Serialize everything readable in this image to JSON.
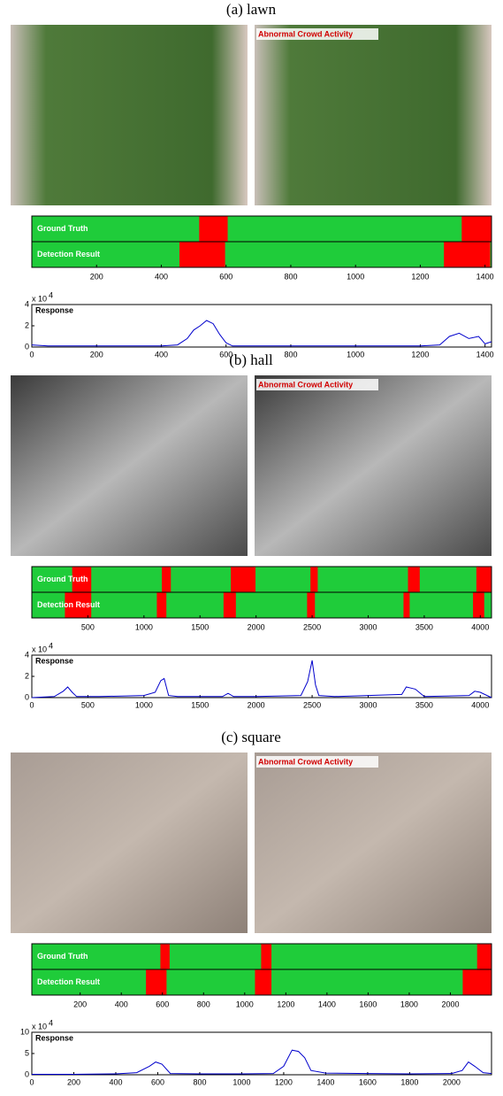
{
  "panels": [
    {
      "caption": "(a) lawn",
      "overlay_label": "Abnormal Crowd Activity"
    },
    {
      "caption": "(b) hall",
      "overlay_label": "Abnormal Crowd Activity"
    },
    {
      "caption": "(c) square",
      "overlay_label": "Abnormal Crowd Activity"
    }
  ],
  "chart_data": [
    {
      "type": "timeline",
      "background": "#1fcc3a",
      "xlim": [
        0,
        1420
      ],
      "xticks": [
        200,
        400,
        600,
        800,
        1000,
        1200,
        1400
      ],
      "series": [
        {
          "name": "Ground Truth",
          "color": "#ff0000",
          "intervals": [
            [
              517,
              605
            ],
            [
              1328,
              1420
            ]
          ]
        },
        {
          "name": "Detection Result",
          "color": "#ff0000",
          "intervals": [
            [
              456,
              597
            ],
            [
              1273,
              1416
            ]
          ]
        }
      ]
    },
    {
      "type": "line",
      "title": "Response",
      "y_scale": {
        "base": "x 10",
        "exponent": "4"
      },
      "xlim": [
        0,
        1420
      ],
      "xticks": [
        0,
        200,
        400,
        600,
        800,
        1000,
        1200,
        1400
      ],
      "ylim": [
        0,
        4
      ],
      "yticks": [
        0,
        2,
        4
      ],
      "x": [
        0,
        50,
        100,
        200,
        300,
        400,
        450,
        480,
        500,
        520,
        540,
        560,
        580,
        600,
        620,
        700,
        800,
        1000,
        1200,
        1260,
        1290,
        1320,
        1350,
        1380,
        1400,
        1420
      ],
      "series": [
        {
          "color": "#0000cc",
          "values": [
            0.2,
            0.1,
            0.1,
            0.1,
            0.1,
            0.1,
            0.2,
            0.8,
            1.6,
            2.0,
            2.5,
            2.2,
            1.2,
            0.4,
            0.1,
            0.1,
            0.1,
            0.1,
            0.1,
            0.2,
            1.0,
            1.3,
            0.8,
            1.0,
            0.3,
            0.5
          ]
        }
      ]
    },
    {
      "type": "timeline",
      "background": "#1fcc3a",
      "xlim": [
        0,
        4100
      ],
      "xticks": [
        500,
        1000,
        1500,
        2000,
        2500,
        3000,
        3500,
        4000
      ],
      "series": [
        {
          "name": "Ground Truth",
          "color": "#ff0000",
          "intervals": [
            [
              360,
              530
            ],
            [
              1160,
              1240
            ],
            [
              1775,
              1995
            ],
            [
              2485,
              2550
            ],
            [
              3355,
              3460
            ],
            [
              3965,
              4100
            ]
          ]
        },
        {
          "name": "Detection Result",
          "color": "#ff0000",
          "intervals": [
            [
              295,
              530
            ],
            [
              1115,
              1200
            ],
            [
              1710,
              1820
            ],
            [
              2455,
              2525
            ],
            [
              3315,
              3370
            ],
            [
              3935,
              4035
            ]
          ]
        }
      ]
    },
    {
      "type": "line",
      "title": "Response",
      "y_scale": {
        "base": "x 10",
        "exponent": "4"
      },
      "xlim": [
        0,
        4100
      ],
      "xticks": [
        0,
        500,
        1000,
        1500,
        2000,
        2500,
        3000,
        3500,
        4000
      ],
      "ylim": [
        0,
        4
      ],
      "yticks": [
        0,
        2,
        4
      ],
      "x": [
        0,
        200,
        280,
        320,
        360,
        400,
        600,
        1000,
        1100,
        1150,
        1180,
        1220,
        1300,
        1700,
        1750,
        1800,
        2000,
        2400,
        2460,
        2500,
        2530,
        2560,
        2700,
        3000,
        3300,
        3340,
        3380,
        3420,
        3500,
        3900,
        3950,
        4000,
        4100
      ],
      "series": [
        {
          "color": "#0000cc",
          "values": [
            0,
            0.1,
            0.6,
            1.0,
            0.5,
            0.1,
            0.1,
            0.2,
            0.5,
            1.6,
            1.8,
            0.2,
            0.1,
            0.1,
            0.4,
            0.1,
            0.1,
            0.2,
            1.5,
            3.5,
            1.2,
            0.2,
            0.1,
            0.2,
            0.3,
            1.0,
            0.9,
            0.8,
            0.1,
            0.2,
            0.6,
            0.5,
            0
          ]
        }
      ]
    },
    {
      "type": "timeline",
      "background": "#1fcc3a",
      "xlim": [
        -35,
        2200
      ],
      "xticks": [
        200,
        400,
        600,
        800,
        1000,
        1200,
        1400,
        1600,
        1800,
        2000
      ],
      "series": [
        {
          "name": "Ground Truth",
          "color": "#ff0000",
          "intervals": [
            [
              590,
              635
            ],
            [
              1080,
              1130
            ],
            [
              2130,
              2200
            ]
          ]
        },
        {
          "name": "Detection Result",
          "color": "#ff0000",
          "intervals": [
            [
              520,
              620
            ],
            [
              1050,
              1130
            ],
            [
              2060,
              2200
            ]
          ]
        }
      ]
    },
    {
      "type": "line",
      "title": "Response",
      "y_scale": {
        "base": "x 10",
        "exponent": "4"
      },
      "xlim": [
        0,
        2190
      ],
      "xticks": [
        0,
        200,
        400,
        600,
        800,
        1000,
        1200,
        1400,
        1600,
        1800,
        2000
      ],
      "ylim": [
        0,
        10
      ],
      "yticks": [
        0,
        5,
        10
      ],
      "x": [
        0,
        200,
        400,
        500,
        560,
        590,
        620,
        660,
        800,
        1000,
        1150,
        1200,
        1240,
        1270,
        1300,
        1330,
        1400,
        1600,
        1800,
        2000,
        2050,
        2080,
        2110,
        2150,
        2190
      ],
      "series": [
        {
          "color": "#0000cc",
          "values": [
            0.1,
            0.1,
            0.2,
            0.5,
            2.0,
            3.0,
            2.5,
            0.3,
            0.2,
            0.2,
            0.3,
            2.0,
            5.8,
            5.5,
            4.0,
            1.0,
            0.4,
            0.3,
            0.2,
            0.3,
            1.0,
            3.0,
            2.0,
            0.5,
            0.3
          ]
        }
      ]
    }
  ]
}
